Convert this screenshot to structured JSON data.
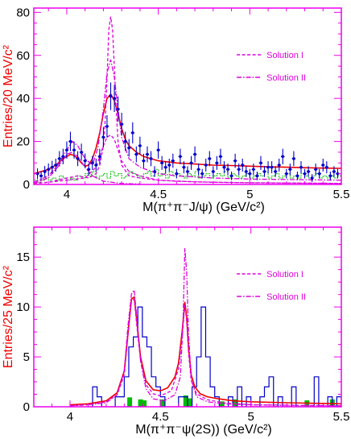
{
  "chart_data": [
    {
      "type": "line",
      "panel": "top",
      "xlabel": "M(π⁺π⁻J/ψ) (GeV/c²)",
      "ylabel": "Entries/20 MeV/c²",
      "xlim": [
        3.82,
        5.5
      ],
      "ylim": [
        0,
        82
      ],
      "xticks": [
        {
          "v": 4,
          "label": "4"
        },
        {
          "v": 4.5,
          "label": "4.5"
        },
        {
          "v": 5,
          "label": "5"
        },
        {
          "v": 5.5,
          "label": "5.5"
        }
      ],
      "yticks": [
        {
          "v": 0,
          "label": "0"
        },
        {
          "v": 20,
          "label": "20"
        },
        {
          "v": 40,
          "label": "40"
        },
        {
          "v": 60,
          "label": "60"
        },
        {
          "v": 80,
          "label": "80"
        }
      ],
      "grid": false,
      "legend_position": "top-right",
      "legend": [
        {
          "name": "Solution I",
          "style": "dashed"
        },
        {
          "name": "Solution II",
          "style": "dash-dot"
        }
      ],
      "colors": {
        "axis": "#ee00ee",
        "data": "#0000cc",
        "fit": "#ee0000",
        "solutions": "#dd00dd",
        "background": "#00bb00"
      },
      "data_points": {
        "x": [
          3.84,
          3.86,
          3.88,
          3.9,
          3.92,
          3.94,
          3.96,
          3.98,
          4.0,
          4.02,
          4.04,
          4.06,
          4.08,
          4.1,
          4.12,
          4.14,
          4.16,
          4.18,
          4.2,
          4.22,
          4.24,
          4.26,
          4.28,
          4.3,
          4.32,
          4.34,
          4.36,
          4.38,
          4.4,
          4.42,
          4.44,
          4.46,
          4.48,
          4.5,
          4.52,
          4.54,
          4.56,
          4.58,
          4.6,
          4.62,
          4.64,
          4.66,
          4.68,
          4.7,
          4.72,
          4.74,
          4.76,
          4.78,
          4.8,
          4.82,
          4.84,
          4.86,
          4.88,
          4.9,
          4.92,
          4.94,
          4.96,
          4.98,
          5.0,
          5.02,
          5.04,
          5.06,
          5.08,
          5.1,
          5.12,
          5.14,
          5.16,
          5.18,
          5.2,
          5.22,
          5.24,
          5.26,
          5.28,
          5.3,
          5.32,
          5.34,
          5.36,
          5.38,
          5.4,
          5.42,
          5.44,
          5.46,
          5.48
        ],
        "y": [
          5,
          4,
          6,
          7,
          8,
          9,
          12,
          13,
          16,
          20,
          16,
          12,
          15,
          11,
          7,
          10,
          9,
          13,
          22,
          27,
          41,
          40,
          35,
          28,
          20,
          17,
          24,
          14,
          18,
          11,
          14,
          12,
          6,
          16,
          10,
          8,
          9,
          11,
          5,
          13,
          8,
          6,
          10,
          14,
          7,
          5,
          9,
          12,
          6,
          10,
          13,
          8,
          7,
          4,
          11,
          7,
          9,
          6,
          5,
          7,
          4,
          10,
          6,
          8,
          8,
          6,
          9,
          13,
          5,
          7,
          12,
          4,
          8,
          5,
          6,
          3,
          7,
          5,
          9,
          8,
          4,
          6,
          5
        ],
        "err": [
          2.5,
          2.2,
          2.6,
          2.8,
          3.0,
          3.0,
          3.5,
          3.6,
          4.0,
          4.5,
          4.0,
          3.5,
          4.0,
          3.4,
          2.8,
          3.2,
          3.0,
          3.6,
          4.7,
          5.2,
          6.4,
          6.3,
          5.9,
          5.3,
          4.5,
          4.1,
          4.9,
          3.7,
          4.2,
          3.3,
          3.7,
          3.5,
          2.5,
          4.0,
          3.2,
          2.8,
          3.0,
          3.3,
          2.2,
          3.6,
          2.8,
          2.5,
          3.2,
          3.7,
          2.7,
          2.2,
          3.0,
          3.5,
          2.5,
          3.2,
          3.6,
          2.8,
          2.7,
          2.0,
          3.3,
          2.7,
          3.0,
          2.5,
          2.2,
          2.7,
          2.0,
          3.2,
          2.5,
          2.8,
          2.8,
          2.5,
          3.0,
          3.6,
          2.2,
          2.7,
          3.5,
          2.0,
          2.8,
          2.2,
          2.5,
          1.8,
          2.7,
          2.2,
          3.0,
          2.8,
          2.0,
          2.5,
          2.2
        ]
      },
      "background_hist": {
        "edges_start": 3.82,
        "bin_width": 0.02,
        "y": [
          2,
          1,
          2,
          3,
          2,
          3,
          2,
          4,
          3,
          2,
          3,
          2,
          4,
          3,
          5,
          4,
          6,
          3,
          4,
          5,
          3,
          6,
          4,
          5,
          3,
          4,
          6,
          5,
          4,
          3,
          5,
          6,
          4,
          7,
          4,
          5,
          3,
          6,
          4,
          5,
          4,
          3,
          5,
          4,
          6,
          3,
          4,
          5,
          3,
          4,
          5,
          4,
          6,
          3,
          5,
          4,
          3,
          4,
          5,
          3,
          4,
          5,
          4,
          6,
          3,
          4,
          5,
          3,
          4,
          5,
          3,
          4,
          3,
          5,
          4,
          3,
          4,
          5,
          3,
          4,
          3,
          4,
          3,
          4
        ]
      },
      "curves": [
        {
          "role": "total-fit",
          "style": "solid",
          "x": [
            3.82,
            3.86,
            3.9,
            3.94,
            3.98,
            4.0,
            4.02,
            4.04,
            4.06,
            4.08,
            4.1,
            4.12,
            4.14,
            4.16,
            4.18,
            4.2,
            4.22,
            4.24,
            4.26,
            4.28,
            4.3,
            4.32,
            4.34,
            4.38,
            4.42,
            4.46,
            4.5,
            4.6,
            4.7,
            4.8,
            4.9,
            5.0,
            5.1,
            5.2,
            5.3,
            5.4,
            5.5
          ],
          "y": [
            5,
            6,
            7,
            9,
            12,
            13,
            14,
            13.5,
            12,
            10,
            8.5,
            9,
            12,
            17,
            24,
            33,
            40,
            42,
            39,
            33,
            26,
            21,
            18,
            15,
            13,
            12,
            11,
            10,
            9.5,
            9,
            8.8,
            8.5,
            8.2,
            8,
            7.8,
            7.6,
            7.5
          ]
        },
        {
          "role": "solution-I",
          "style": "dashed",
          "x": [
            3.82,
            3.9,
            4.0,
            4.06,
            4.12,
            4.16,
            4.18,
            4.2,
            4.21,
            4.22,
            4.23,
            4.24,
            4.25,
            4.26,
            4.27,
            4.28,
            4.3,
            4.34,
            4.4,
            4.5,
            4.6,
            4.8,
            5.0,
            5.5
          ],
          "y": [
            0.5,
            1,
            3,
            4,
            3,
            5,
            9,
            18,
            30,
            50,
            72,
            78,
            72,
            55,
            35,
            20,
            9,
            4,
            3,
            2,
            1.5,
            1,
            0.8,
            0.5
          ]
        },
        {
          "role": "solution-I-component",
          "style": "dashed",
          "x": [
            3.82,
            3.9,
            4.0,
            4.1,
            4.16,
            4.2,
            4.22,
            4.24,
            4.26,
            4.28,
            4.3,
            4.34,
            4.4,
            4.5,
            4.7,
            5.0,
            5.5
          ],
          "y": [
            0.5,
            1,
            2,
            3,
            8,
            18,
            22,
            23,
            21,
            16,
            11,
            6,
            4,
            2,
            1.2,
            0.8,
            0.5
          ]
        },
        {
          "role": "solution-II",
          "style": "dash-dot",
          "x": [
            3.82,
            3.9,
            3.95,
            4.0,
            4.03,
            4.06,
            4.1,
            4.14,
            4.17,
            4.2,
            4.22,
            4.24,
            4.26,
            4.28,
            4.3,
            4.34,
            4.4,
            4.5,
            4.6,
            4.8,
            5.0,
            5.5
          ],
          "y": [
            1,
            4,
            9,
            16,
            20,
            18,
            12,
            9,
            17,
            35,
            52,
            58,
            50,
            35,
            22,
            12,
            8,
            5,
            4,
            3,
            2.5,
            2
          ]
        },
        {
          "role": "solution-II-component",
          "style": "dash-dot",
          "x": [
            3.82,
            3.9,
            3.96,
            4.0,
            4.03,
            4.06,
            4.1,
            4.14,
            4.2,
            4.3,
            4.4
          ],
          "y": [
            0.5,
            3,
            9,
            14,
            15,
            13,
            8,
            4,
            1.5,
            0.5,
            0.2
          ]
        }
      ]
    },
    {
      "type": "line",
      "panel": "bottom",
      "xlabel": "M(π⁺π⁻ψ(2S)) (GeV/c²)",
      "ylabel": "Entries/25 MeV/c²",
      "xlim": [
        3.8,
        5.5
      ],
      "ylim": [
        0,
        18
      ],
      "xticks": [
        {
          "v": 4,
          "label": "4"
        },
        {
          "v": 4.5,
          "label": "4.5"
        },
        {
          "v": 5,
          "label": "5"
        },
        {
          "v": 5.5,
          "label": "5.5"
        }
      ],
      "yticks": [
        {
          "v": 0,
          "label": "0"
        },
        {
          "v": 5,
          "label": "5"
        },
        {
          "v": 10,
          "label": "10"
        },
        {
          "v": 15,
          "label": "15"
        }
      ],
      "grid": false,
      "legend_position": "top-right",
      "legend": [
        {
          "name": "Solution I",
          "style": "dashed"
        },
        {
          "name": "Solution II",
          "style": "dash-dot"
        }
      ],
      "colors": {
        "axis": "#ee00ee",
        "data": "#0000cc",
        "fit": "#ee0000",
        "solutions": "#dd00dd",
        "background": "#00bb00"
      },
      "data_hist": {
        "edges_start": 4.1,
        "bin_width": 0.025,
        "y": [
          0,
          2,
          1,
          0,
          0,
          0,
          1,
          1,
          3,
          6,
          7,
          10,
          7,
          6,
          3,
          2,
          1,
          0,
          0,
          0,
          1,
          1,
          0,
          2,
          5,
          10,
          5,
          2,
          1,
          0,
          0,
          1,
          0,
          2,
          0,
          1,
          0,
          0,
          1,
          2,
          3,
          0,
          1,
          0,
          0,
          2,
          0,
          0,
          0,
          0,
          3,
          0,
          0,
          1,
          0,
          1,
          0,
          3,
          0,
          1,
          1,
          0,
          1,
          1,
          0,
          1,
          1,
          0,
          1,
          1
        ]
      },
      "background_points": {
        "x": [
          4.33,
          4.39,
          4.41,
          4.51,
          4.64,
          4.66,
          4.84,
          4.91,
          5.31,
          5.45
        ],
        "y": [
          0.7,
          0.5,
          0.4,
          0.5,
          0.9,
          0.6,
          0.3,
          0.5,
          0.4,
          0.5
        ]
      },
      "curves": [
        {
          "role": "total-fit",
          "style": "solid",
          "x": [
            4.0,
            4.1,
            4.2,
            4.26,
            4.3,
            4.32,
            4.34,
            4.355,
            4.37,
            4.39,
            4.42,
            4.46,
            4.5,
            4.54,
            4.58,
            4.6,
            4.62,
            4.635,
            4.645,
            4.655,
            4.67,
            4.69,
            4.72,
            4.76,
            4.82,
            4.9,
            5.0,
            5.2,
            5.5
          ],
          "y": [
            0.2,
            0.3,
            0.6,
            1.4,
            3.6,
            7.2,
            10.8,
            11.0,
            8.5,
            5.0,
            2.6,
            1.7,
            1.6,
            1.9,
            3.0,
            4.4,
            7.6,
            10.5,
            9.0,
            6.0,
            3.2,
            2.0,
            1.3,
            1.0,
            0.8,
            0.6,
            0.5,
            0.4,
            0.3
          ]
        },
        {
          "role": "solution-I",
          "style": "dashed",
          "x": [
            4.0,
            4.1,
            4.2,
            4.26,
            4.3,
            4.32,
            4.34,
            4.355,
            4.37,
            4.39,
            4.42,
            4.46,
            4.5,
            4.56,
            4.6,
            4.62,
            4.635,
            4.645,
            4.655,
            4.67,
            4.7,
            4.76,
            4.85,
            5.0,
            5.5
          ],
          "y": [
            0.1,
            0.2,
            0.5,
            1.2,
            3.2,
            7.0,
            10.6,
            10.8,
            8.0,
            4.6,
            2.2,
            1.3,
            1.1,
            1.6,
            3.8,
            7.0,
            10.2,
            8.6,
            5.5,
            2.6,
            1.3,
            0.7,
            0.4,
            0.2,
            0.1
          ]
        },
        {
          "role": "solution-II",
          "style": "dash-dot",
          "x": [
            4.0,
            4.1,
            4.2,
            4.26,
            4.3,
            4.32,
            4.34,
            4.355,
            4.37,
            4.39,
            4.42,
            4.46,
            4.52,
            4.58,
            4.61,
            4.625,
            4.635,
            4.645,
            4.655,
            4.67,
            4.7,
            4.76,
            4.85,
            5.0,
            5.5
          ],
          "y": [
            0.1,
            0.2,
            0.4,
            1.2,
            3.6,
            8.0,
            11.3,
            11.7,
            8.8,
            4.6,
            1.8,
            0.8,
            0.6,
            1.2,
            3.0,
            8.5,
            15.9,
            13.5,
            7.5,
            2.8,
            1.0,
            0.5,
            0.3,
            0.2,
            0.1
          ]
        }
      ]
    }
  ]
}
